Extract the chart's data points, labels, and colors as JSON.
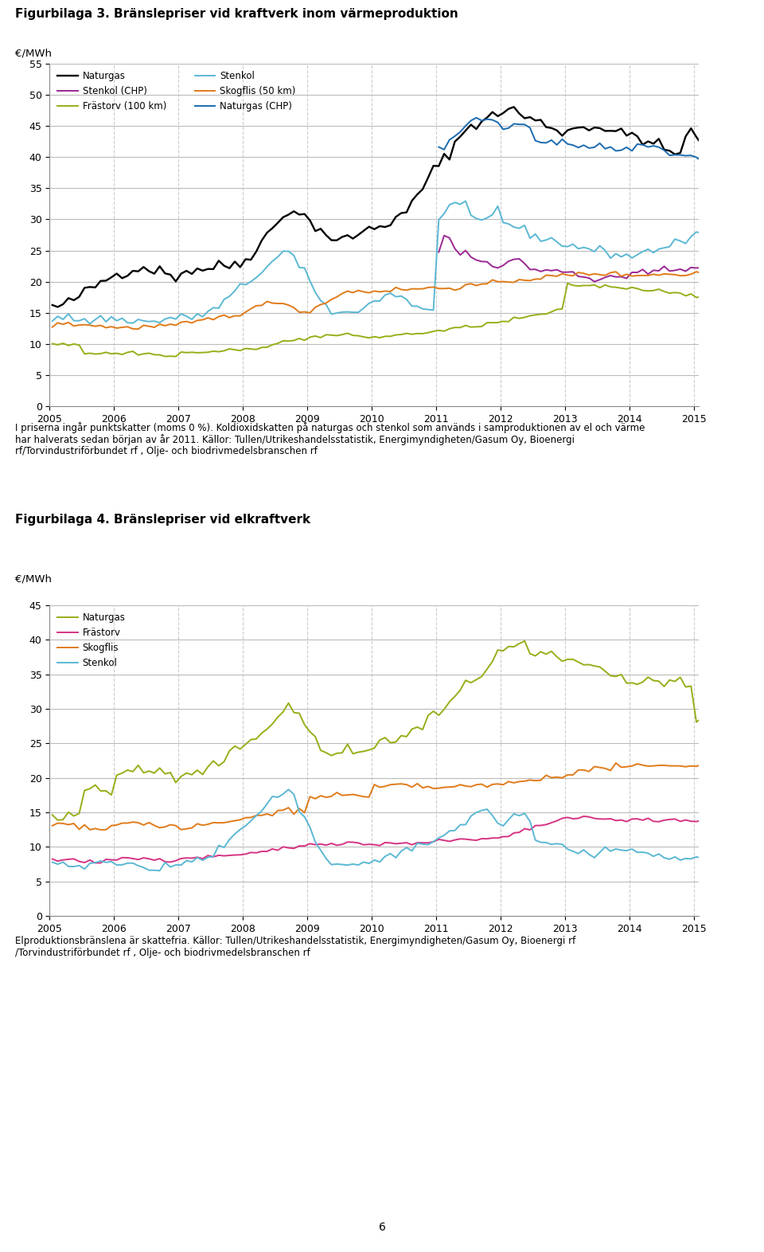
{
  "fig3_title": "Figurbilaga 3. Bränslepriser vid kraftverk inom värmeproduktion",
  "fig4_title": "Figurbilaga 4. Bränslepriser vid elkraftverk",
  "ylabel": "€/MWh",
  "fig3_note1": "I priserna ingår punktskatter (moms 0 %). Koldioxidskatten på naturgas och stenkol som används i samproduktionen av el och värme",
  "fig3_note2": "har halverats sedan början av år 2011. Källor: Tullen/Utrikeshandelsstatistik, Energimyndigheten/Gasum Oy, Bioenergi",
  "fig3_note3": "rf/Torvindustriförbundet rf , Olje- och biodrivmedelsbranschen rf",
  "fig4_note1": "Elproduktionsbränslena är skattefria. Källor: Tullen/Utrikeshandelsstatistik, Energimyndigheten/Gasum Oy, Bioenergi rf",
  "fig4_note2": "/Torvindustriförbundet rf , Olje- och biodrivmedelsbranschen rf",
  "fig3_ylim": [
    0,
    55
  ],
  "fig3_yticks": [
    0,
    5,
    10,
    15,
    20,
    25,
    30,
    35,
    40,
    45,
    50,
    55
  ],
  "fig4_ylim": [
    0,
    45
  ],
  "fig4_yticks": [
    0,
    5,
    10,
    15,
    20,
    25,
    30,
    35,
    40,
    45
  ],
  "colors": {
    "Naturgas": "#000000",
    "Stenkol": "#5BB8D4",
    "Stenkol_CHP": "#9B2793",
    "Skogflis": "#E07B1A",
    "Frastorv": "#9AAD19",
    "Naturgas_CHP": "#1B6BB0",
    "Naturgas_el": "#9AAD19",
    "Frastorv_el": "#D63384",
    "Skogflis_el": "#E07B1A",
    "Stenkol_el": "#5BB8D4"
  },
  "page_number": "6",
  "background_color": "#ffffff",
  "grid_color": "#bbbbbb",
  "grid_dash_color": "#cccccc"
}
